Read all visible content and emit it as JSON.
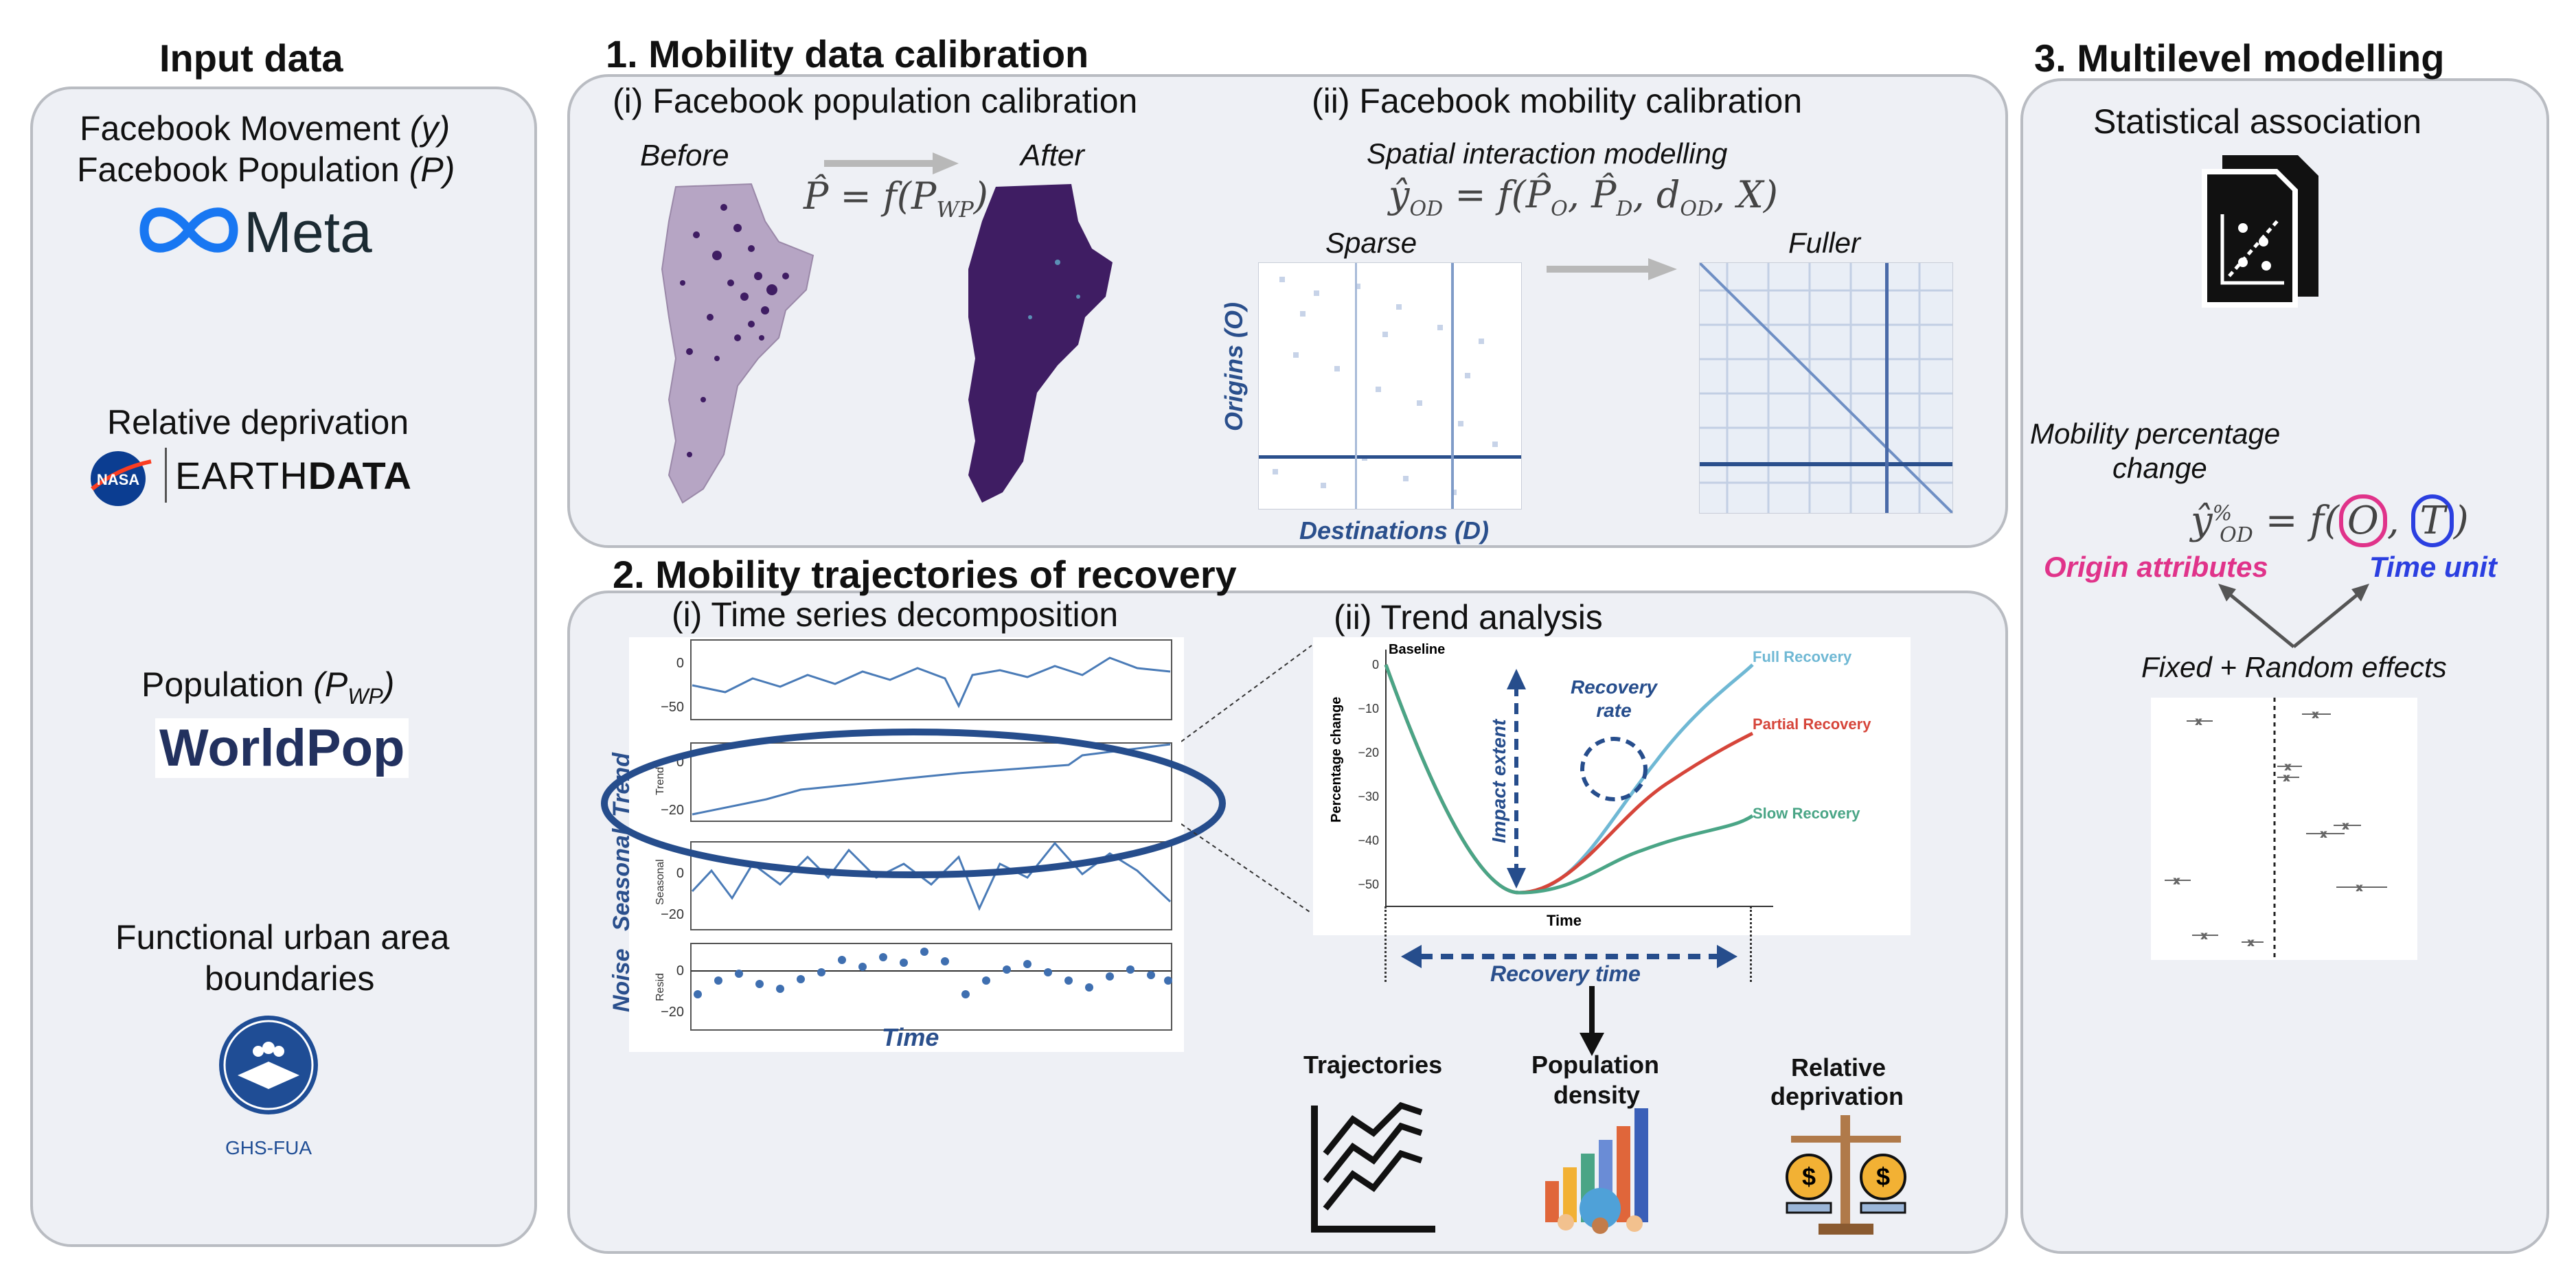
{
  "input": {
    "title": "Input data",
    "fb_movement": "Facebook Movement",
    "fb_movement_var": "(y)",
    "fb_population": "Facebook Population",
    "fb_population_var": "(P)",
    "meta_logo": "Meta",
    "rel_dep": "Relative deprivation",
    "nasa_logo": "NASA",
    "earthdata_a": "EARTH",
    "earthdata_b": "DATA",
    "population": "Population",
    "population_var_main": "(P",
    "population_var_sub": "WP",
    "population_var_close": ")",
    "worldpop_logo": "WorldPop",
    "fua_line1": "Functional urban area",
    "fua_line2": "boundaries",
    "ghs_logo": "GHS-FUA"
  },
  "calibration": {
    "title": "1. Mobility data calibration",
    "pop_sub": "(i) Facebook population calibration",
    "mob_sub": "(ii) Facebook mobility calibration",
    "before": "Before",
    "after": "After",
    "pop_formula": "P̂ = f(P",
    "pop_formula_sub": "WP",
    "pop_formula_close": ")",
    "sim_label": "Spatial interaction modelling",
    "sim_formula": "ŷ",
    "sim_formula_sub": "OD",
    "sim_formula_rest": " = f(P̂",
    "sim_o": "O",
    "sim_mid": ", P̂",
    "sim_d": "D",
    "sim_mid2": ", d",
    "sim_od": "OD",
    "sim_end": ", X)",
    "sparse": "Sparse",
    "fuller": "Fuller",
    "origins": "Origins (O)",
    "destinations": "Destinations (D)"
  },
  "trajectories": {
    "title": "2. Mobility trajectories of recovery",
    "ts_sub": "(i) Time series decomposition",
    "trend_sub": "(ii) Trend analysis",
    "trend_side": "Trend",
    "seasonal_side": "Seasonal",
    "noise_side": "Noise",
    "trend_axis": "Trend",
    "seasonal_axis": "Seasonal",
    "resid_axis": "Resid",
    "time": "Time",
    "ticks_top": [
      "0",
      "−50"
    ],
    "ticks_trend": [
      "0",
      "−20"
    ],
    "ticks_seasonal": [
      "0",
      "−20"
    ],
    "ticks_resid": [
      "0",
      "−20"
    ],
    "baseline": "Baseline",
    "full": "Full Recovery",
    "partial": "Partial Recovery",
    "slow": "Slow Recovery",
    "impact": "Impact extent",
    "rate_line1": "Recovery",
    "rate_line2": "rate",
    "ylabel": "Percentage change",
    "xlabel": "Time",
    "yticks": [
      "0",
      "−10",
      "−20",
      "−30",
      "−40",
      "−50"
    ],
    "recovery_time": "Recovery time",
    "traj": "Trajectories",
    "popdens_line1": "Population",
    "popdens_line2": "density",
    "reldep_line1": "Relative",
    "reldep_line2": "deprivation"
  },
  "multilevel": {
    "title": "3. Multilevel modelling",
    "stat": "Statistical association",
    "mpc_line1": "Mobility percentage",
    "mpc_line2": "change",
    "formula_y": "ŷ",
    "formula_sup": "%",
    "formula_sub": "OD",
    "formula_rest": " = f(",
    "formula_o": "O",
    "formula_comma": ", ",
    "formula_t": "T",
    "formula_close": ")",
    "origin_attr": "Origin attributes",
    "time_unit": "Time unit",
    "effects": "Fixed + Random effects"
  },
  "colors": {
    "panel_bg": "#eef0f5",
    "panel_border": "#b9bcc2",
    "dark_blue": "#2a4f8c",
    "full": "#6fb8d4",
    "partial": "#d6453a",
    "slow": "#4aa586",
    "origin": "#e0338a",
    "timeunit": "#2b3fe0",
    "purple": "#3f1d63",
    "lilac": "#b6a5c4"
  }
}
